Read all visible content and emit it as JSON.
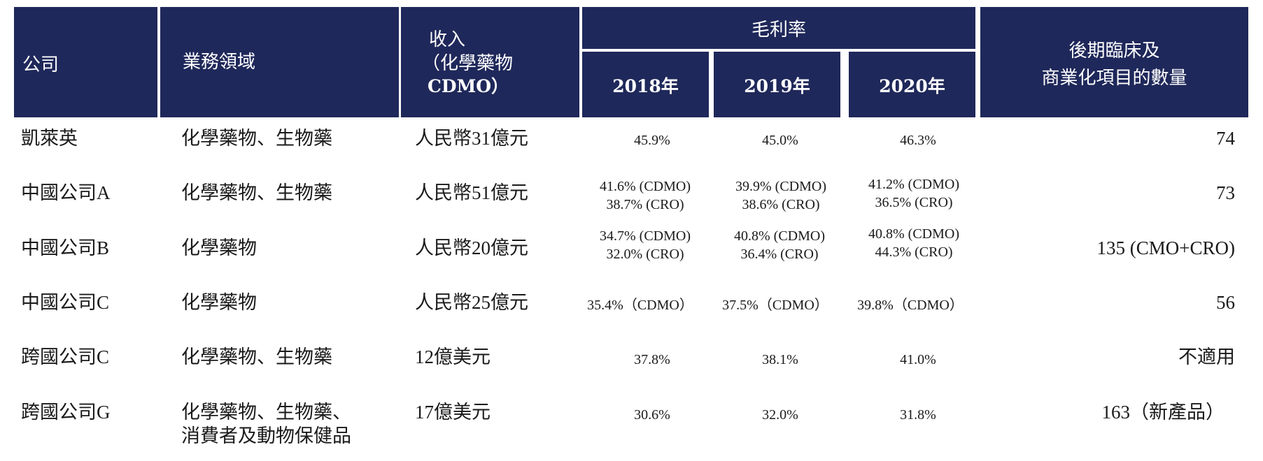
{
  "headers": {
    "company": "公司",
    "business": "業務領域",
    "revenue_line1": "收入",
    "revenue_line2": "（化學藥物",
    "revenue_line3": "CDMO）",
    "gross_margin": "毛利率",
    "years": [
      "2018年",
      "2019年",
      "2020年"
    ],
    "projects_line1": "後期臨床及",
    "projects_line2": "商業化項目的數量"
  },
  "rows": [
    {
      "company": "凱萊英",
      "business": [
        "化學藥物、生物藥"
      ],
      "revenue": "人民幣31億元",
      "margins": [
        [
          "45.9%"
        ],
        [
          "45.0%"
        ],
        [
          "46.3%"
        ]
      ],
      "projects": "74"
    },
    {
      "company": "中國公司A",
      "business": [
        "化學藥物、生物藥"
      ],
      "revenue": "人民幣51億元",
      "margins": [
        [
          "41.6% (CDMO)",
          "38.7% (CRO)"
        ],
        [
          "39.9% (CDMO)",
          "38.6% (CRO)"
        ],
        [
          "41.2% (CDMO)",
          "36.5% (CRO)"
        ]
      ],
      "projects": "73"
    },
    {
      "company": "中國公司B",
      "business": [
        "化學藥物"
      ],
      "revenue": "人民幣20億元",
      "margins": [
        [
          "34.7% (CDMO)",
          "32.0% (CRO)"
        ],
        [
          "40.8% (CDMO)",
          "36.4% (CRO)"
        ],
        [
          "40.8% (CDMO)",
          "44.3% (CRO)"
        ]
      ],
      "projects": "135 (CMO+CRO)"
    },
    {
      "company": "中國公司C",
      "business": [
        "化學藥物"
      ],
      "revenue": "人民幣25億元",
      "margins": [
        [
          "35.4%（CDMO）"
        ],
        [
          "37.5%（CDMO）"
        ],
        [
          "39.8%（CDMO）"
        ]
      ],
      "projects": "56"
    },
    {
      "company": "跨國公司C",
      "business": [
        "化學藥物、生物藥"
      ],
      "revenue": "12億美元",
      "margins": [
        [
          "37.8%"
        ],
        [
          "38.1%"
        ],
        [
          "41.0%"
        ]
      ],
      "projects": "不適用"
    },
    {
      "company": "跨國公司G",
      "business": [
        "化學藥物、生物藥、",
        "消費者及動物保健品"
      ],
      "revenue": "17億美元",
      "margins": [
        [
          "30.6%"
        ],
        [
          "32.0%"
        ],
        [
          "31.8%"
        ]
      ],
      "projects": "163（新產品）"
    }
  ],
  "colors": {
    "header_bg": "#1f285a",
    "header_text": "#ffffff",
    "body_text": "#1a1a1a"
  }
}
